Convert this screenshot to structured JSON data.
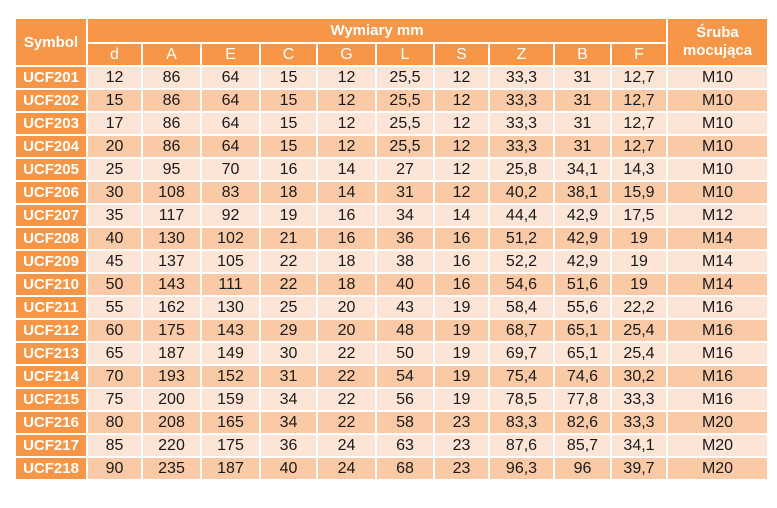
{
  "table": {
    "symbol_header": "Symbol",
    "group_header": "Wymiary mm",
    "bolt_header_line1": "Śruba",
    "bolt_header_line2": "mocująca",
    "columns": [
      "d",
      "A",
      "E",
      "C",
      "G",
      "L",
      "S",
      "Z",
      "B",
      "F"
    ],
    "rows": [
      {
        "symbol": "UCF201",
        "values": [
          "12",
          "86",
          "64",
          "15",
          "12",
          "25,5",
          "12",
          "33,3",
          "31",
          "12,7"
        ],
        "bolt": "M10"
      },
      {
        "symbol": "UCF202",
        "values": [
          "15",
          "86",
          "64",
          "15",
          "12",
          "25,5",
          "12",
          "33,3",
          "31",
          "12,7"
        ],
        "bolt": "M10"
      },
      {
        "symbol": "UCF203",
        "values": [
          "17",
          "86",
          "64",
          "15",
          "12",
          "25,5",
          "12",
          "33,3",
          "31",
          "12,7"
        ],
        "bolt": "M10"
      },
      {
        "symbol": "UCF204",
        "values": [
          "20",
          "86",
          "64",
          "15",
          "12",
          "25,5",
          "12",
          "33,3",
          "31",
          "12,7"
        ],
        "bolt": "M10"
      },
      {
        "symbol": "UCF205",
        "values": [
          "25",
          "95",
          "70",
          "16",
          "14",
          "27",
          "12",
          "25,8",
          "34,1",
          "14,3"
        ],
        "bolt": "M10"
      },
      {
        "symbol": "UCF206",
        "values": [
          "30",
          "108",
          "83",
          "18",
          "14",
          "31",
          "12",
          "40,2",
          "38,1",
          "15,9"
        ],
        "bolt": "M10"
      },
      {
        "symbol": "UCF207",
        "values": [
          "35",
          "117",
          "92",
          "19",
          "16",
          "34",
          "14",
          "44,4",
          "42,9",
          "17,5"
        ],
        "bolt": "M12"
      },
      {
        "symbol": "UCF208",
        "values": [
          "40",
          "130",
          "102",
          "21",
          "16",
          "36",
          "16",
          "51,2",
          "42,9",
          "19"
        ],
        "bolt": "M14"
      },
      {
        "symbol": "UCF209",
        "values": [
          "45",
          "137",
          "105",
          "22",
          "18",
          "38",
          "16",
          "52,2",
          "42,9",
          "19"
        ],
        "bolt": "M14"
      },
      {
        "symbol": "UCF210",
        "values": [
          "50",
          "143",
          "111",
          "22",
          "18",
          "40",
          "16",
          "54,6",
          "51,6",
          "19"
        ],
        "bolt": "M14"
      },
      {
        "symbol": "UCF211",
        "values": [
          "55",
          "162",
          "130",
          "25",
          "20",
          "43",
          "19",
          "58,4",
          "55,6",
          "22,2"
        ],
        "bolt": "M16"
      },
      {
        "symbol": "UCF212",
        "values": [
          "60",
          "175",
          "143",
          "29",
          "20",
          "48",
          "19",
          "68,7",
          "65,1",
          "25,4"
        ],
        "bolt": "M16"
      },
      {
        "symbol": "UCF213",
        "values": [
          "65",
          "187",
          "149",
          "30",
          "22",
          "50",
          "19",
          "69,7",
          "65,1",
          "25,4"
        ],
        "bolt": "M16"
      },
      {
        "symbol": "UCF214",
        "values": [
          "70",
          "193",
          "152",
          "31",
          "22",
          "54",
          "19",
          "75,4",
          "74,6",
          "30,2"
        ],
        "bolt": "M16"
      },
      {
        "symbol": "UCF215",
        "values": [
          "75",
          "200",
          "159",
          "34",
          "22",
          "56",
          "19",
          "78,5",
          "77,8",
          "33,3"
        ],
        "bolt": "M16"
      },
      {
        "symbol": "UCF216",
        "values": [
          "80",
          "208",
          "165",
          "34",
          "22",
          "58",
          "23",
          "83,3",
          "82,6",
          "33,3"
        ],
        "bolt": "M20"
      },
      {
        "symbol": "UCF217",
        "values": [
          "85",
          "220",
          "175",
          "36",
          "24",
          "63",
          "23",
          "87,6",
          "85,7",
          "34,1"
        ],
        "bolt": "M20"
      },
      {
        "symbol": "UCF218",
        "values": [
          "90",
          "235",
          "187",
          "40",
          "24",
          "68",
          "23",
          "96,3",
          "96",
          "39,7"
        ],
        "bolt": "M20"
      }
    ]
  },
  "colors": {
    "header_orange": "#f79646",
    "row_light": "#fce4d6",
    "row_dark": "#fac9a5"
  }
}
